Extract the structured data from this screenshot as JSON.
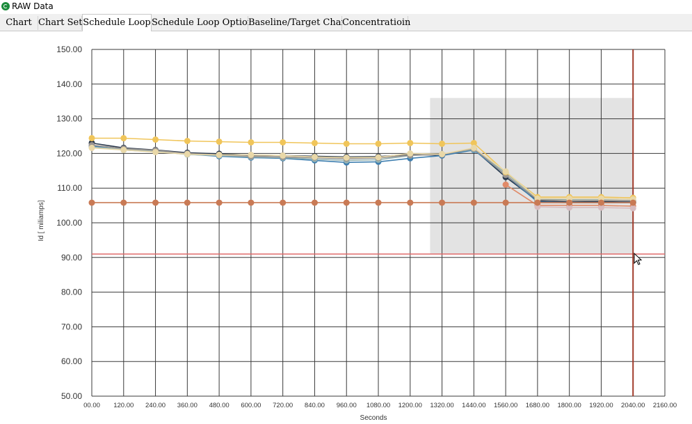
{
  "window": {
    "title": "RAW Data"
  },
  "tabs": [
    {
      "label": "Chart",
      "active": false
    },
    {
      "label": "Chart Set",
      "active": false
    },
    {
      "label": "Schedule Loop",
      "active": true
    },
    {
      "label": "Schedule Loop Option",
      "active": false
    },
    {
      "label": "Baseline/Target Chart",
      "active": false
    },
    {
      "label": "Concentratioin",
      "active": false
    }
  ],
  "colors": {
    "grid": "#3a3a3a",
    "highlight_region": "#e3e3e3",
    "threshold_line": "#e06a6a",
    "cursor_line": "#a03a2a"
  },
  "chart_data": {
    "type": "line",
    "xlabel": "Seconds",
    "ylabel": "Id [ miliamps]",
    "xlim": [
      0,
      2160
    ],
    "ylim": [
      50,
      150
    ],
    "x_ticks": [
      "00.00",
      "120.00",
      "240.00",
      "360.00",
      "480.00",
      "600.00",
      "720.00",
      "840.00",
      "960.00",
      "1080.00",
      "1200.00",
      "1320.00",
      "1440.00",
      "1560.00",
      "1680.00",
      "1800.00",
      "1920.00",
      "2040.00",
      "2160.00"
    ],
    "y_ticks": [
      "150.00",
      "140.00",
      "130.00",
      "120.00",
      "110.00",
      "100.00",
      "90.00",
      "80.00",
      "70.00",
      "60.00",
      "50.00"
    ],
    "grid": true,
    "highlight_region": {
      "x": [
        1275,
        2040
      ],
      "y": [
        91,
        136
      ]
    },
    "threshold_y": 91,
    "cursor_x": 2040,
    "x": [
      0,
      120,
      240,
      360,
      480,
      600,
      720,
      840,
      960,
      1080,
      1200,
      1320,
      1440,
      1560,
      1680,
      1800,
      1920,
      2040
    ],
    "series": [
      {
        "color": "#27364a",
        "values": [
          123.0,
          121.6,
          121.0,
          120.2,
          119.9,
          119.5,
          119.4,
          119.2,
          119.0,
          119.1,
          119.7,
          119.5,
          121.2,
          113.2,
          106.3,
          106.0,
          106.1,
          106.0
        ]
      },
      {
        "color": "#3f7fb0",
        "values": [
          122.2,
          121.0,
          120.5,
          119.8,
          119.2,
          118.8,
          118.6,
          118.0,
          117.4,
          117.6,
          118.6,
          119.4,
          121.0,
          113.8,
          106.0,
          105.8,
          105.8,
          105.8
        ]
      },
      {
        "color": "#98b4b2",
        "values": [
          121.8,
          121.2,
          120.6,
          119.7,
          119.4,
          119.0,
          118.8,
          118.4,
          118.0,
          118.2,
          119.4,
          119.8,
          121.2,
          114.4,
          106.8,
          106.6,
          106.6,
          106.4
        ]
      },
      {
        "color": "#9a9490",
        "values": [
          122.4,
          121.4,
          120.9,
          120.0,
          119.6,
          119.2,
          119.0,
          118.8,
          118.5,
          118.7,
          119.5,
          119.7,
          121.4,
          113.8,
          106.6,
          106.4,
          106.4,
          106.4
        ]
      },
      {
        "color": "#f0c55a",
        "values": [
          124.4,
          124.4,
          124.0,
          123.6,
          123.4,
          123.2,
          123.2,
          123.0,
          122.8,
          122.8,
          123.0,
          122.8,
          123.0,
          114.6,
          107.4,
          107.4,
          107.4,
          107.2
        ]
      },
      {
        "color": "#e9d8a8",
        "values": [
          121.6,
          121.0,
          120.4,
          119.8,
          119.6,
          119.6,
          119.4,
          119.0,
          118.8,
          118.9,
          120.0,
          119.8,
          121.6,
          114.8,
          107.0,
          107.0,
          107.0,
          106.8
        ]
      },
      {
        "color": "#e08a68",
        "values": [
          null,
          null,
          null,
          null,
          null,
          null,
          null,
          null,
          null,
          null,
          null,
          null,
          null,
          111.0,
          105.0,
          105.0,
          105.0,
          104.8
        ]
      },
      {
        "color": "#d8bcc0",
        "values": [
          null,
          null,
          null,
          null,
          null,
          null,
          null,
          null,
          null,
          null,
          null,
          null,
          null,
          null,
          104.6,
          104.4,
          104.4,
          104.2
        ]
      },
      {
        "color": "#c97a55",
        "values": [
          105.8,
          105.8,
          105.8,
          105.8,
          105.8,
          105.8,
          105.8,
          105.8,
          105.8,
          105.8,
          105.8,
          105.8,
          105.8,
          105.8,
          105.8,
          105.8,
          105.8,
          105.8
        ]
      }
    ]
  }
}
